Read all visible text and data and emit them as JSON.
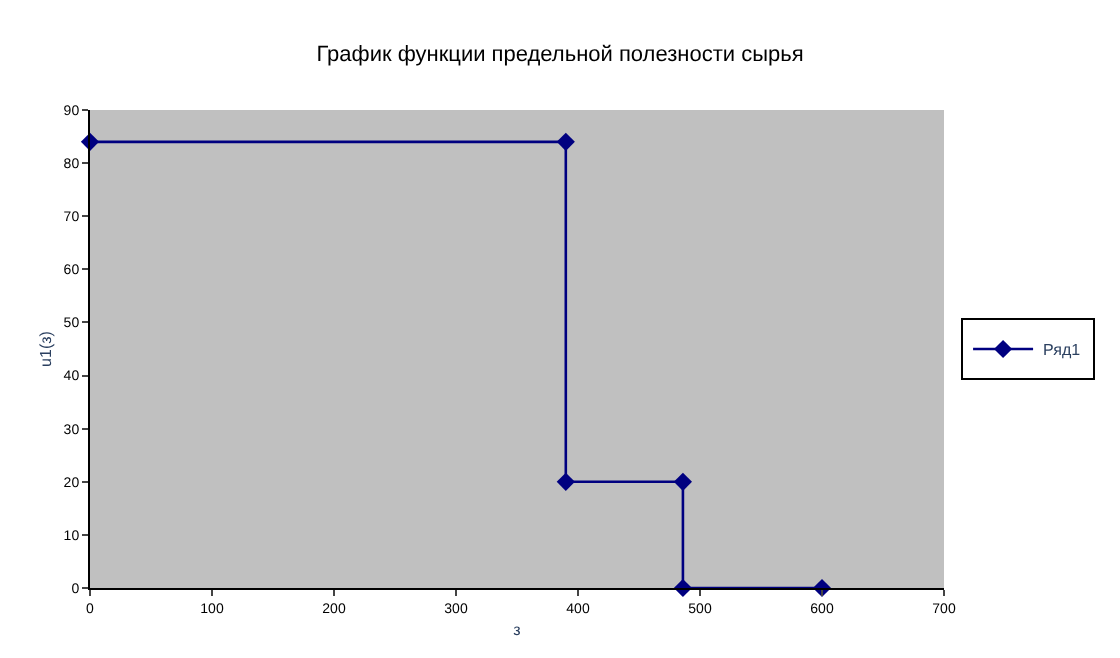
{
  "chart_data": {
    "type": "line",
    "title": "График функции предельной полезности сырья",
    "xlabel": "з",
    "ylabel": "u1(з)",
    "x": [
      0,
      390,
      390,
      486,
      486,
      600
    ],
    "series": [
      {
        "name": "Ряд1",
        "color": "#000080",
        "values": [
          84,
          84,
          20,
          20,
          0,
          0
        ]
      }
    ],
    "xlim": [
      0,
      700
    ],
    "xticks": [
      0,
      100,
      200,
      300,
      400,
      500,
      600,
      700
    ],
    "ylim": [
      0,
      90
    ],
    "yticks": [
      0,
      10,
      20,
      30,
      40,
      50,
      60,
      70,
      80,
      90
    ],
    "grid": false,
    "legend": "right",
    "marker": "diamond",
    "line_style": "solid"
  }
}
